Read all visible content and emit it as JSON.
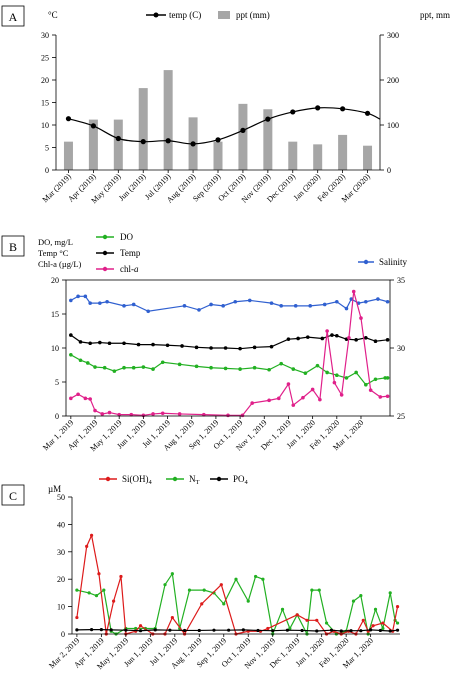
{
  "chart_data": [
    {
      "type": "bar+line",
      "panel_label": "A",
      "x_tick_labels": [
        "Mar (2019)",
        "Apr (2019)",
        "May (2019)",
        "Jun (2019)",
        "Jul (2019)",
        "Aug (2019)",
        "Sep (2019)",
        "Oct (2019)",
        "Nov (2019)",
        "Dec (2019)",
        "Jan (2020)",
        "Feb (2020)",
        "Mar (2020)"
      ],
      "y_left": {
        "unit": "°C",
        "ylim": [
          0,
          30
        ],
        "ticks": [
          "0",
          "5",
          "10",
          "15",
          "20",
          "25",
          "30"
        ]
      },
      "y_right": {
        "unit": "ppt, mm",
        "ylim": [
          0,
          300
        ],
        "ticks": [
          "0",
          "100",
          "200",
          "300"
        ]
      },
      "legend": {
        "temp": "temp (C)",
        "ppt": "ppt (mm)",
        "placement": "top"
      },
      "series": {
        "temp_line": {
          "x": [
            0,
            1,
            2,
            3,
            4,
            5,
            6,
            7,
            8,
            9,
            10,
            11,
            12,
            12.5
          ],
          "y": [
            11.4,
            9.8,
            7,
            6.3,
            6.5,
            5.8,
            6.7,
            8.8,
            11.3,
            12.9,
            13.8,
            13.6,
            12.6,
            11.3
          ]
        },
        "ppt_bars": {
          "x": [
            0,
            1,
            2,
            3,
            4,
            5,
            6,
            7,
            8,
            9,
            10,
            11,
            12
          ],
          "y": [
            63,
            112,
            112,
            182,
            222,
            117,
            63,
            147,
            135,
            63,
            57,
            78,
            54
          ]
        }
      }
    },
    {
      "type": "line",
      "panel_label": "B",
      "x_tick_labels": [
        "Mar 1, 2019",
        "Apr 1, 2019",
        "May 1, 2019",
        "Jun 1, 2019",
        "Jul 1, 2019",
        "Aug 1, 2019",
        "Sep 1, 2019",
        "Oct 1, 2019",
        "Nov 1, 2019",
        "Dec 1, 2019",
        "Jan 1, 2020",
        "Feb 1, 2020",
        "Mar 1, 2020"
      ],
      "x_range_months": [
        -0.2,
        13.2
      ],
      "y_left": {
        "label_lines": [
          "DO, mg/L",
          "Temp °C",
          "Chl-a (µg/L)"
        ],
        "ylim": [
          0,
          20
        ],
        "ticks": [
          "0",
          "5",
          "10",
          "15",
          "20"
        ]
      },
      "y_right": {
        "ylim": [
          25,
          35
        ],
        "ticks": [
          "25",
          "30",
          "35"
        ]
      },
      "legend": {
        "do": "DO",
        "temp": "Temp",
        "chl_prefix": "chl-",
        "chl_italic": "a",
        "salinity": "Salinity"
      },
      "series": {
        "salinity": {
          "axis": "right",
          "color": "#3060d0",
          "x": [
            0,
            0.3,
            0.6,
            0.8,
            1.2,
            1.5,
            2.2,
            2.6,
            3.2,
            4.7,
            5.3,
            5.8,
            6.3,
            6.8,
            7.4,
            8.3,
            8.7,
            9.3,
            9.9,
            10.5,
            11,
            11.4,
            11.6,
            11.9,
            12.2,
            12.7,
            13.1
          ],
          "y": [
            33.5,
            33.8,
            33.8,
            33.3,
            33.3,
            33.4,
            33.1,
            33.2,
            32.7,
            33.1,
            32.8,
            33.2,
            33.1,
            33.4,
            33.5,
            33.3,
            33.1,
            33.1,
            33.1,
            33.2,
            33.4,
            32.9,
            33.6,
            33.3,
            33.4,
            33.6,
            33.4
          ]
        },
        "temp": {
          "axis": "left",
          "color": "#000000",
          "x": [
            0,
            0.4,
            0.8,
            1.2,
            1.6,
            2.2,
            2.8,
            3.4,
            4,
            4.6,
            5.2,
            5.8,
            6.4,
            7,
            7.6,
            8.3,
            9,
            9.4,
            9.8,
            10.4,
            10.8,
            11,
            11.4,
            11.8,
            12.2,
            12.6,
            13.1
          ],
          "y": [
            11.9,
            10.9,
            10.7,
            10.8,
            10.7,
            10.7,
            10.5,
            10.5,
            10.4,
            10.3,
            10.1,
            10,
            10,
            9.9,
            10.1,
            10.2,
            11.3,
            11.4,
            11.6,
            11.4,
            11.9,
            11.8,
            11.3,
            11.2,
            11.5,
            11,
            11.2
          ]
        },
        "do": {
          "axis": "left",
          "color": "#22b022",
          "x": [
            0,
            0.4,
            0.7,
            1,
            1.4,
            1.8,
            2.2,
            2.6,
            3,
            3.4,
            3.8,
            4.5,
            5.2,
            5.8,
            6.4,
            7,
            7.6,
            8.2,
            8.7,
            9.2,
            9.7,
            10.2,
            10.6,
            11,
            11.4,
            11.8,
            12.2,
            12.6,
            13,
            13.1
          ],
          "y": [
            9,
            8.2,
            7.8,
            7.2,
            7.1,
            6.6,
            7.1,
            7.1,
            7.2,
            6.9,
            7.9,
            7.6,
            7.3,
            7.1,
            7,
            6.9,
            7.1,
            6.8,
            7.7,
            6.9,
            6.3,
            7.4,
            6.4,
            6,
            5.6,
            6.4,
            4.6,
            5.4,
            5.6,
            5.6
          ]
        },
        "chl": {
          "axis": "left",
          "color": "#e0208a",
          "x": [
            0,
            0.3,
            0.6,
            0.8,
            1,
            1.3,
            1.6,
            2,
            2.5,
            3,
            3.4,
            3.8,
            4.5,
            5.5,
            6.5,
            7.1,
            7.5,
            8.2,
            8.6,
            9,
            9.2,
            9.6,
            10,
            10.3,
            10.6,
            10.9,
            11.2,
            11.5,
            11.7,
            12,
            12.4,
            12.8,
            13.1
          ],
          "y": [
            2.6,
            3.2,
            2.6,
            2.5,
            0.8,
            0.3,
            0.5,
            0.2,
            0.2,
            0.1,
            0.3,
            0.4,
            0.3,
            0.2,
            0.1,
            0.1,
            1.9,
            2.3,
            2.6,
            4.7,
            1.6,
            2.7,
            3.9,
            2.4,
            12.5,
            4.9,
            3.1,
            11.5,
            18.3,
            14.4,
            3.8,
            2.8,
            2.9
          ]
        }
      }
    },
    {
      "type": "line",
      "panel_label": "C",
      "x_tick_labels": [
        "Mar 2, 2019",
        "Apr 1, 2019",
        "May 1, 2019",
        "Jun 1, 2019",
        "Jul 1, 2019",
        "Aug 1, 2019",
        "Sep 1, 2019",
        "Oct 1, 2019",
        "Nov 1, 2019",
        "Dec 1, 2019",
        "Jan 1, 2020",
        "Feb 1, 2020",
        "Mar 1, 2020"
      ],
      "x_range_months": [
        -0.2,
        13.2
      ],
      "y_left": {
        "unit": "µM",
        "ylim": [
          0,
          50
        ],
        "ticks": [
          "0",
          "10",
          "20",
          "30",
          "40",
          "50"
        ]
      },
      "legend": {
        "si_prefix": "Si(OH)",
        "si_sub": "4",
        "nt_prefix": "N",
        "nt_sub": "T",
        "po_prefix": "PO",
        "po_sub": "4"
      },
      "series": {
        "si": {
          "color": "#dd1b1b",
          "x": [
            0,
            0.4,
            0.6,
            0.9,
            1.2,
            1.5,
            1.8,
            2,
            2.4,
            2.6,
            3.1,
            3.6,
            3.9,
            4.4,
            5.1,
            5.9,
            6.5,
            7,
            7.5,
            7.8,
            9,
            9.4,
            9.8,
            10.2,
            10.5,
            10.8,
            11.1,
            11.4,
            11.7,
            11.9,
            12.1,
            12.5,
            12.9,
            13.1
          ],
          "y": [
            6,
            32,
            36,
            22,
            0,
            12,
            21,
            0,
            1,
            3,
            0,
            0,
            6,
            0,
            11,
            18,
            0,
            1,
            1,
            2,
            7,
            5,
            5,
            0,
            1,
            0,
            1,
            0,
            5,
            1,
            3,
            4,
            1,
            10
          ]
        },
        "nt": {
          "color": "#22b022",
          "x": [
            0,
            0.5,
            0.8,
            1.1,
            1.4,
            1.6,
            2,
            2.4,
            2.8,
            3.2,
            3.6,
            3.9,
            4.2,
            4.6,
            5.2,
            5.6,
            6,
            6.5,
            7,
            7.3,
            7.6,
            8,
            8.4,
            8.7,
            9,
            9.4,
            9.6,
            9.9,
            10.2,
            10.6,
            11,
            11.3,
            11.6,
            11.9,
            12.2,
            12.5,
            12.8,
            13,
            13.1
          ],
          "y": [
            16,
            15,
            14,
            16,
            1,
            0,
            2,
            2,
            2,
            2,
            18,
            22,
            2,
            16,
            16,
            15,
            11,
            20,
            12,
            21,
            20,
            0,
            9,
            2,
            7,
            0,
            16,
            16,
            4,
            0,
            1,
            12,
            14,
            0,
            9,
            2,
            15,
            5,
            4
          ]
        },
        "po": {
          "color": "#000000",
          "x": [
            0,
            0.6,
            1,
            1.4,
            2,
            2.6,
            3.2,
            3.8,
            4.4,
            5,
            5.6,
            6.2,
            6.8,
            7.4,
            8,
            8.6,
            9.2,
            9.8,
            10.4,
            10.8,
            11.2,
            11.6,
            12,
            12.4,
            12.8,
            13.1
          ],
          "y": [
            1.5,
            1.6,
            1.6,
            1.5,
            1.4,
            1.2,
            1.5,
            1.4,
            1.3,
            1.3,
            1.4,
            1.4,
            1.5,
            1.3,
            1.2,
            1.4,
            1.3,
            1.1,
            1.4,
            1.1,
            1.2,
            1.2,
            1.5,
            1.3,
            1.1,
            1.4
          ]
        }
      }
    }
  ]
}
